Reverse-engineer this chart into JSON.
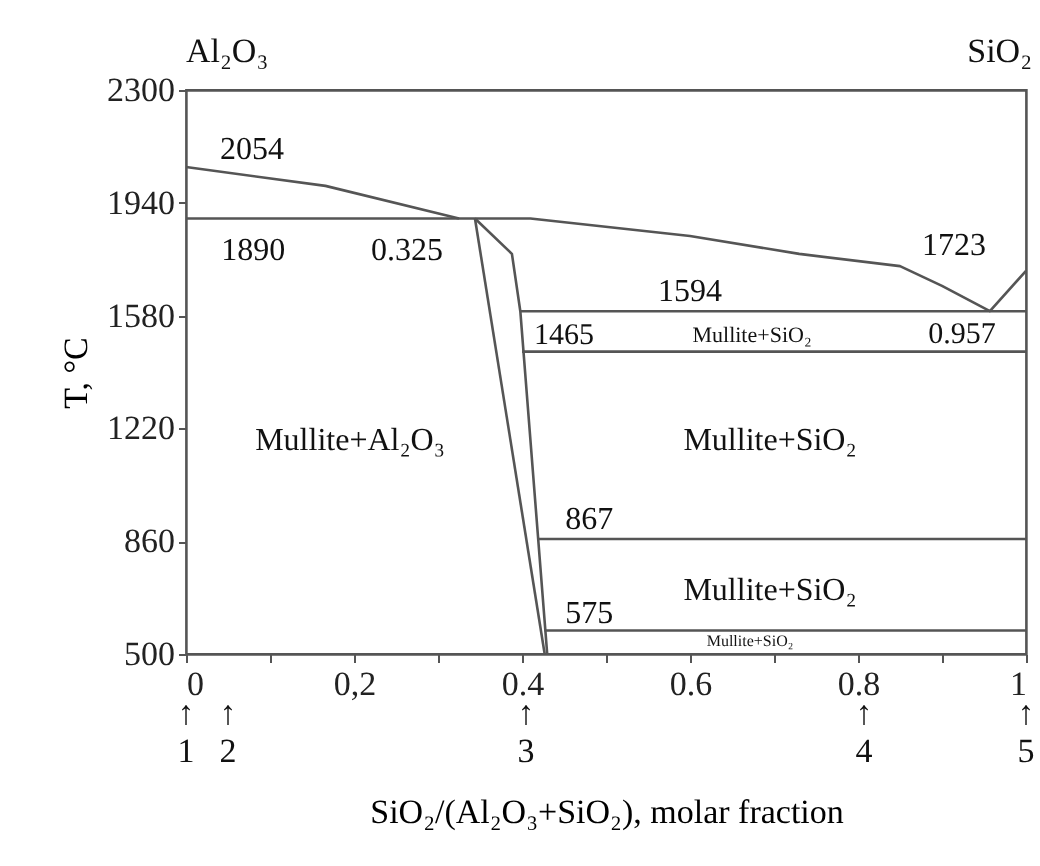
{
  "chart_data": {
    "type": "line",
    "xlabel": "SiO₂/(Al₂O₃+SiO₂), molar fraction",
    "ylabel": "T, °C",
    "xlim": [
      0,
      1
    ],
    "ylim": [
      500,
      2300
    ],
    "xticks": [
      0,
      {
        "value": 0.1,
        "label": null
      },
      {
        "value": 0.2,
        "label": "0,2"
      },
      {
        "value": 0.3,
        "label": null
      },
      0.4,
      {
        "value": 0.5,
        "label": null
      },
      0.6,
      {
        "value": 0.7,
        "label": null
      },
      0.8,
      {
        "value": 0.9,
        "label": null
      },
      1
    ],
    "yticks": [
      500,
      860,
      1220,
      1580,
      1940,
      2300
    ],
    "grid": false,
    "marker": "none",
    "line_style": "solid",
    "series": [
      {
        "color": "#555555",
        "x": [
          0,
          0.166,
          0.325
        ],
        "values": [
          2054,
          1994,
          1890
        ]
      },
      {
        "color": "#555555",
        "x": [
          0,
          0.41,
          0.6,
          0.73,
          0.85,
          0.9,
          0.957,
          1
        ],
        "values": [
          1890,
          1890,
          1834,
          1777,
          1738,
          1675,
          1594,
          1723
        ]
      },
      {
        "color": "#555555",
        "x": [
          0.344,
          0.427
        ],
        "values": [
          1890,
          500
        ]
      },
      {
        "color": "#555555",
        "x": [
          0.344,
          0.388,
          0.398,
          0.43
        ],
        "values": [
          1890,
          1777,
          1594,
          500
        ]
      },
      {
        "color": "#555555",
        "x": [
          0.398,
          1
        ],
        "values": [
          1594,
          1594
        ]
      },
      {
        "color": "#555555",
        "x": [
          0.4,
          1
        ],
        "values": [
          1465,
          1465
        ]
      },
      {
        "color": "#555555",
        "x": [
          0.418,
          1
        ],
        "values": [
          867,
          867
        ]
      },
      {
        "color": "#555555",
        "x": [
          0.427,
          1
        ],
        "values": [
          575,
          575
        ]
      }
    ],
    "annotations": [
      {
        "text": "2054",
        "x": 0,
        "y": 2054
      },
      {
        "text": "1890",
        "x": 0.08,
        "y": 1890
      },
      {
        "text": "0.325",
        "x": 0.325,
        "y": 1890
      },
      {
        "text": "1723",
        "x": 1,
        "y": 1723
      },
      {
        "text": "1594",
        "x": 0.6,
        "y": 1594
      },
      {
        "text": "1465",
        "x": 0.45,
        "y": 1465
      },
      {
        "text": "0.957",
        "x": 0.957,
        "y": 1594
      },
      {
        "text": "867",
        "x": 0.48,
        "y": 867
      },
      {
        "text": "575",
        "x": 0.48,
        "y": 575
      },
      "Al₂O₃",
      "SiO₂",
      "Mullite+SiO₂",
      "Mullite+Al₂O₃",
      "Mullite+SiO₂",
      "Mullite+SiO₂",
      "Mullite+SiO₂",
      "↑\n1",
      "↑\n2",
      "↑\n3",
      "↑\n4",
      "↑\n5"
    ]
  }
}
